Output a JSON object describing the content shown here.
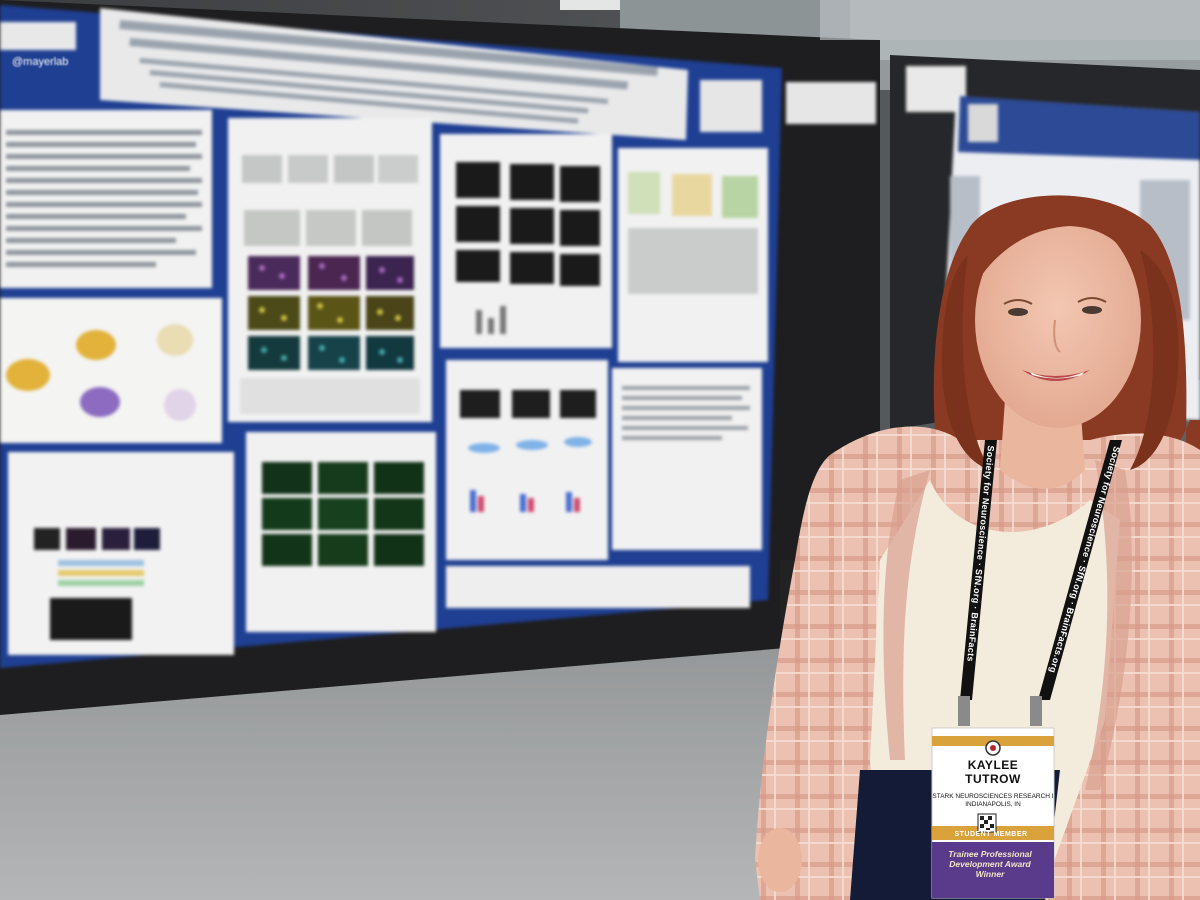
{
  "photo": {
    "description_icons": [
      "poster-board",
      "person",
      "lanyard",
      "name-badge"
    ]
  },
  "badge": {
    "first_name": "KAYLEE",
    "last_name": "TUTROW",
    "affiliation_line1": "STARK NEUROSCIENCES RESEARCH I",
    "affiliation_line2": "INDIANAPOLIS, IN",
    "member_type": "STUDENT MEMBER",
    "award_line1": "Trainee Professional",
    "award_line2": "Development Award Winner"
  },
  "lanyard": {
    "left_text": "Society for Neuroscience · SfN.org · BrainFacts",
    "right_text": "Society for Neuroscience · SfN.org · BrainFacts.org"
  },
  "poster": {
    "handle": "@mayerlab"
  },
  "colors": {
    "poster_blue": "#1f3f93",
    "board_black": "#1e1e20",
    "carpet_gray": "#9a9c9e",
    "blazer_pink": "#e8b8a8",
    "hair_auburn": "#8a3a22",
    "badge_gold": "#d9a23a",
    "badge_purple": "#5a3a8a"
  }
}
